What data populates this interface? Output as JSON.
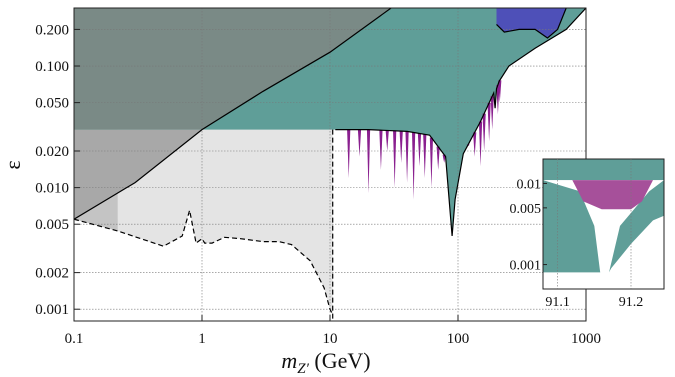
{
  "chart_data": [
    {
      "type": "area",
      "title": "",
      "xlabel": "m_{Z'} (GeV)",
      "xlabel_main": "m",
      "xlabel_sub": "Z′",
      "xlabel_unit": " (GeV)",
      "ylabel": "ε",
      "x_scale": "log",
      "y_scale": "log",
      "xlim": [
        0.1,
        1000
      ],
      "ylim": [
        0.0008,
        0.3
      ],
      "grid": true,
      "x_ticks": [
        0.1,
        1,
        10,
        100,
        1000
      ],
      "x_tick_labels": [
        "0.1",
        "1",
        "10",
        "100",
        "1000"
      ],
      "y_ticks": [
        0.001,
        0.002,
        0.005,
        0.01,
        0.02,
        0.05,
        0.1,
        0.2
      ],
      "y_tick_labels": [
        "0.001",
        "0.002",
        "0.005",
        "0.010",
        "0.020",
        "0.050",
        "0.100",
        "0.200"
      ],
      "colors": {
        "teal": "#5f9e98",
        "dark_gray": "#7a8a86",
        "light_gray": "#e4e4e4",
        "mid_gray": "#c4c4c4",
        "purple": "#8a1f8f",
        "blue": "#4e50b8",
        "line": "#000000"
      },
      "series": [
        {
          "x": [
            0.1,
            0.3,
            1,
            3,
            10,
            30
          ],
          "y": [
            0.0055,
            0.011,
            0.03,
            0.062,
            0.13,
            0.3
          ]
        },
        {
          "x": [
            11,
            20,
            40,
            60,
            80,
            90,
            95,
            110,
            150,
            190,
            195,
            200,
            210,
            250,
            400,
            700,
            1000
          ],
          "y": [
            0.03,
            0.03,
            0.029,
            0.027,
            0.018,
            0.004,
            0.008,
            0.019,
            0.035,
            0.06,
            0.045,
            0.065,
            0.075,
            0.1,
            0.14,
            0.2,
            0.3
          ]
        },
        {
          "x": [
            0.1,
            0.22,
            0.5,
            0.7,
            0.8,
            0.9,
            1.0,
            1.05,
            1.2,
            1.5,
            2,
            3,
            4,
            5,
            7,
            9,
            10,
            10.5
          ],
          "y": [
            0.0055,
            0.0044,
            0.0033,
            0.004,
            0.0065,
            0.0035,
            0.0038,
            0.0035,
            0.0035,
            0.0039,
            0.0038,
            0.0036,
            0.0036,
            0.0034,
            0.0025,
            0.0015,
            0.001,
            0.0009
          ]
        },
        {
          "x": [
            200,
            230,
            300,
            400,
            500,
            600,
            700
          ],
          "y": [
            0.22,
            0.19,
            0.2,
            0.2,
            0.17,
            0.2,
            0.3
          ]
        }
      ]
    },
    {
      "type": "area",
      "xlim": [
        91.08,
        91.245
      ],
      "ylim": [
        0.0005,
        0.02
      ],
      "x_ticks": [
        91.1,
        91.2
      ],
      "x_tick_labels": [
        "91.1",
        "91.2"
      ],
      "y_ticks": [
        0.001,
        0.005,
        0.01
      ],
      "y_tick_labels": [
        "0.001",
        "0.005",
        "0.01"
      ],
      "grid": true
    }
  ]
}
